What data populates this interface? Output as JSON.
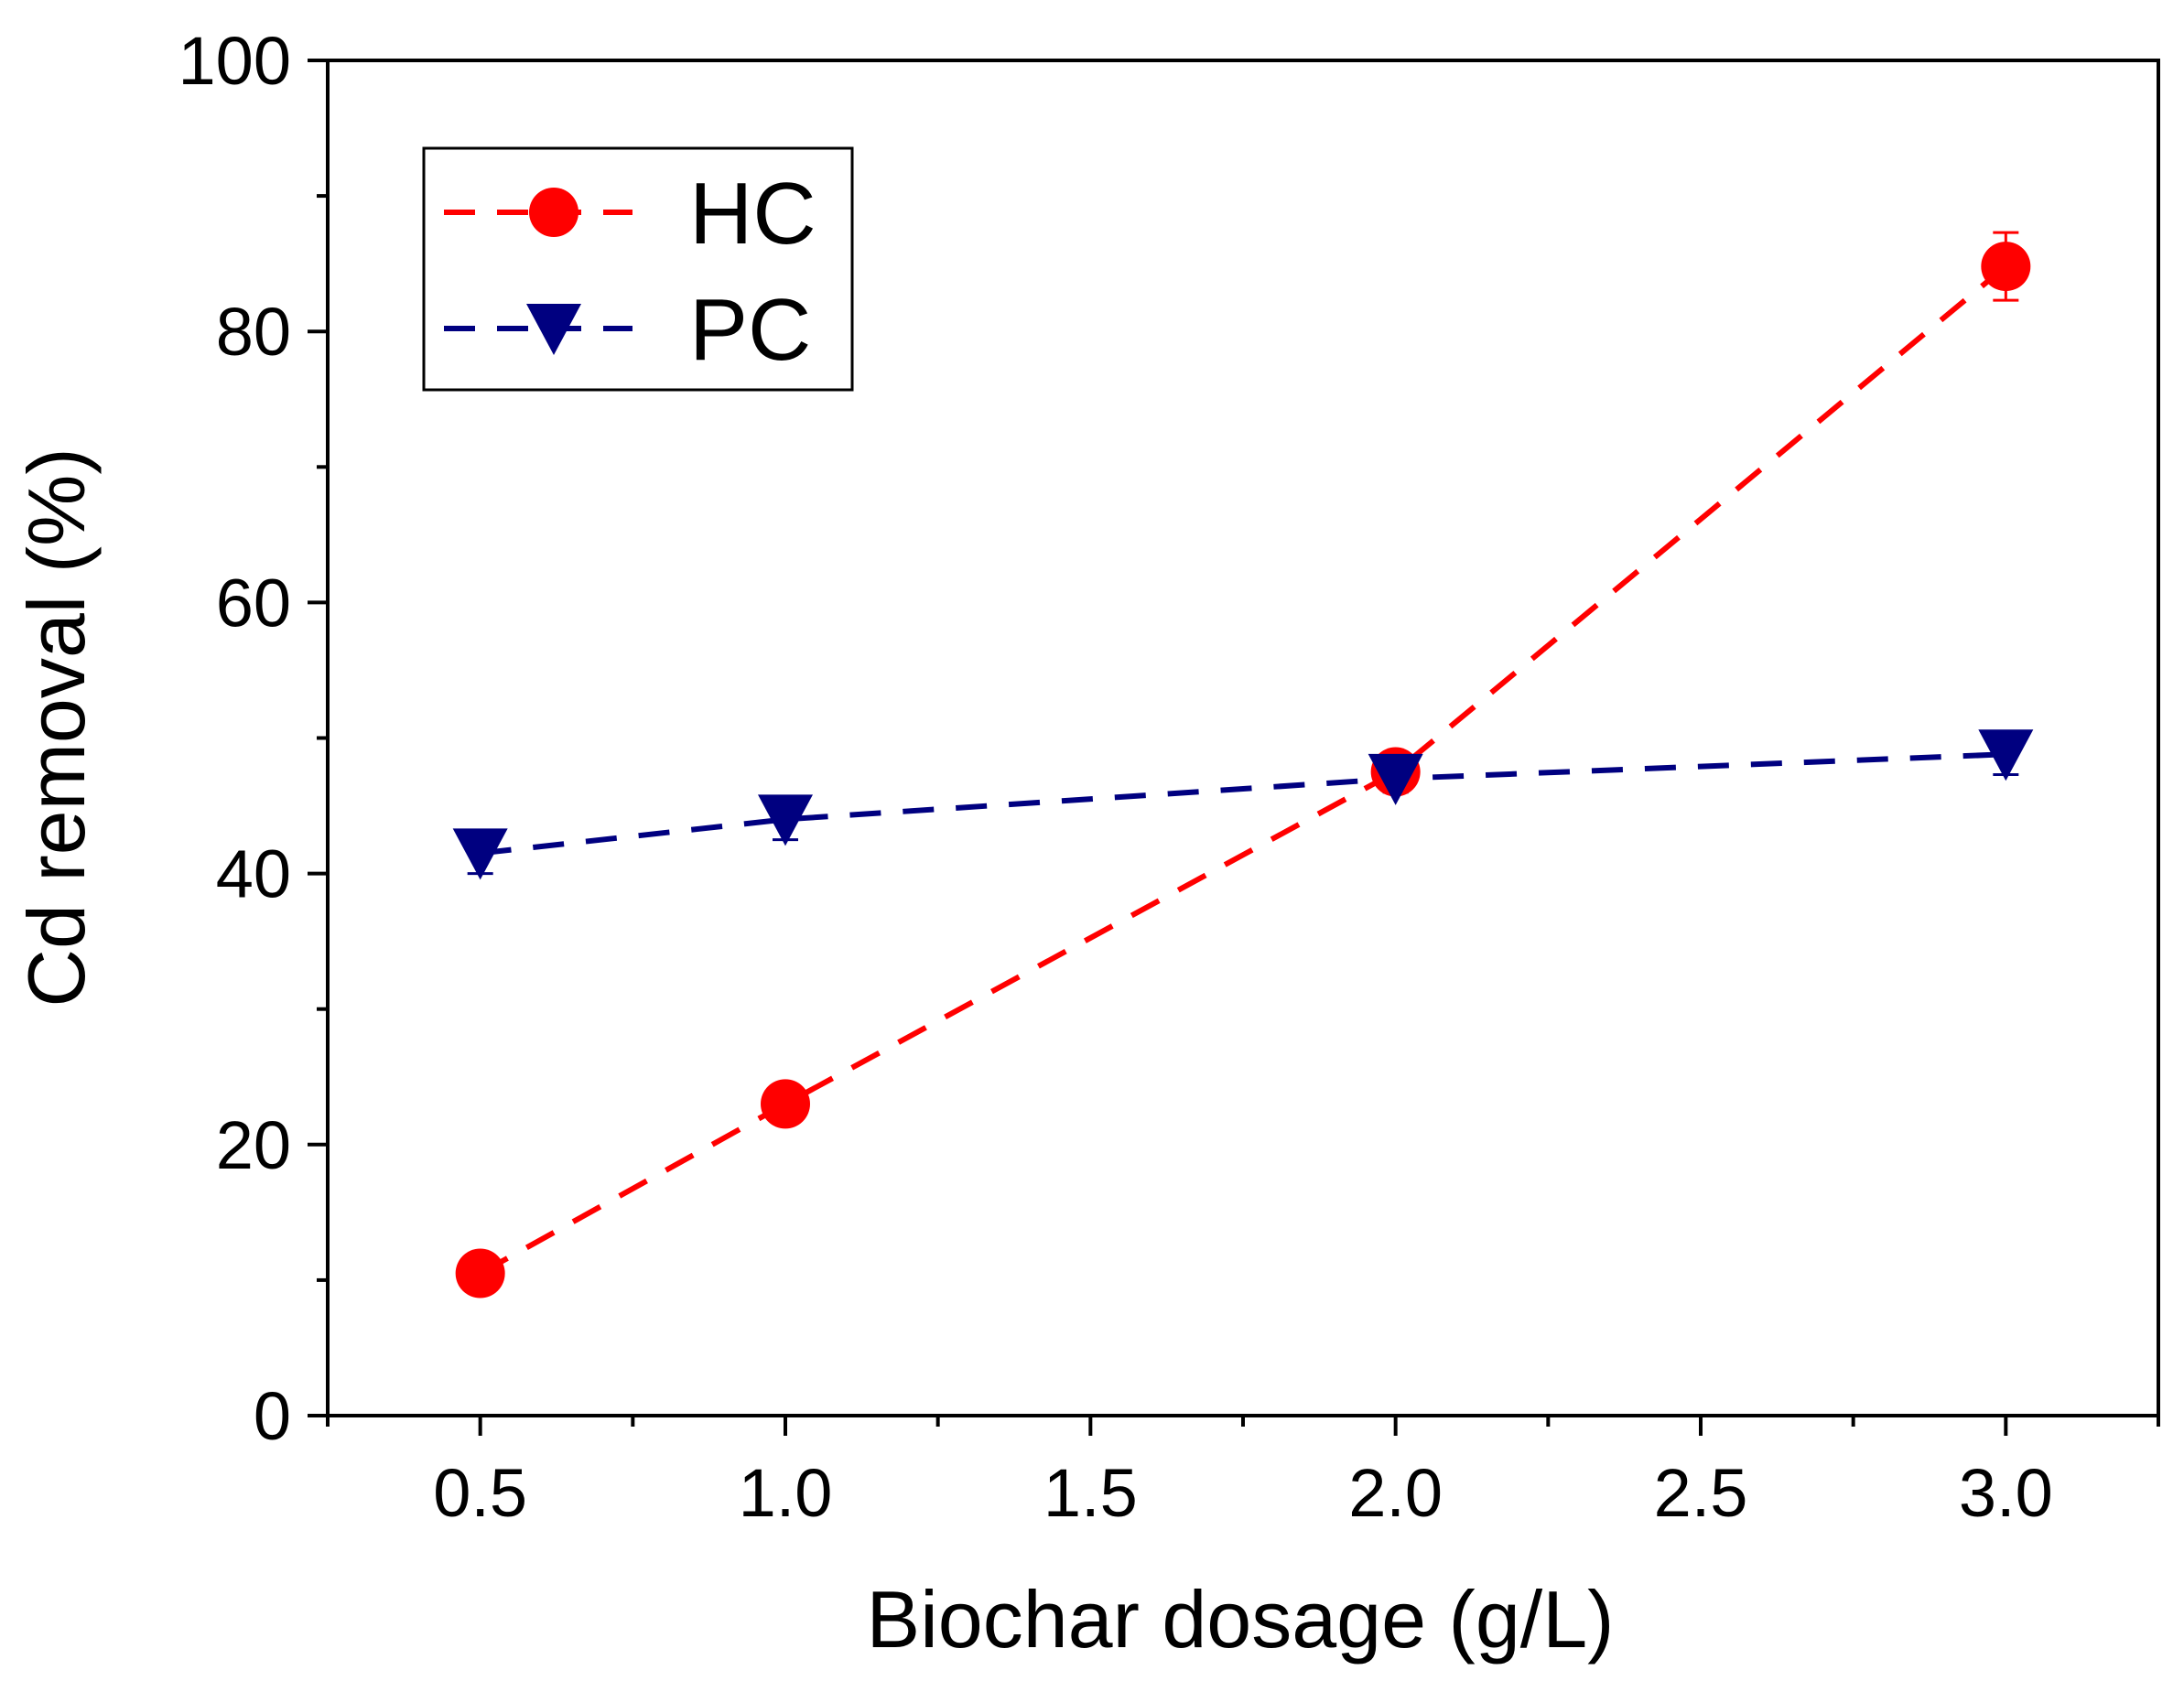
{
  "chart_data": {
    "type": "line",
    "title": "",
    "xlabel": "Biochar dosage (g/L)",
    "ylabel": "Cd removal (%)",
    "xlim": [
      0.25,
      3.25
    ],
    "ylim": [
      0,
      100
    ],
    "x_ticks": [
      0.5,
      1.0,
      1.5,
      2.0,
      2.5,
      3.0
    ],
    "x_tick_labels": [
      "0.5",
      "1.0",
      "1.5",
      "2.0",
      "2.5",
      "3.0"
    ],
    "y_ticks": [
      0,
      20,
      40,
      60,
      80,
      100
    ],
    "y_tick_labels": [
      "0",
      "20",
      "40",
      "60",
      "80",
      "100"
    ],
    "grid": false,
    "legend_position": "top-left",
    "series": [
      {
        "name": "HC",
        "color": "#ff0000",
        "marker": "circle",
        "line_style": "dashed",
        "x": [
          0.5,
          1.0,
          2.0,
          3.0
        ],
        "values": [
          10.5,
          23.0,
          47.5,
          84.8
        ],
        "error": [
          0,
          0,
          1.0,
          2.5
        ]
      },
      {
        "name": "PC",
        "color": "#000080",
        "marker": "triangle-down",
        "line_style": "dashed",
        "x": [
          0.5,
          1.0,
          2.0,
          3.0
        ],
        "values": [
          41.5,
          44.0,
          47.0,
          48.8
        ],
        "error": [
          1.5,
          1.5,
          1.0,
          1.5
        ]
      }
    ]
  }
}
